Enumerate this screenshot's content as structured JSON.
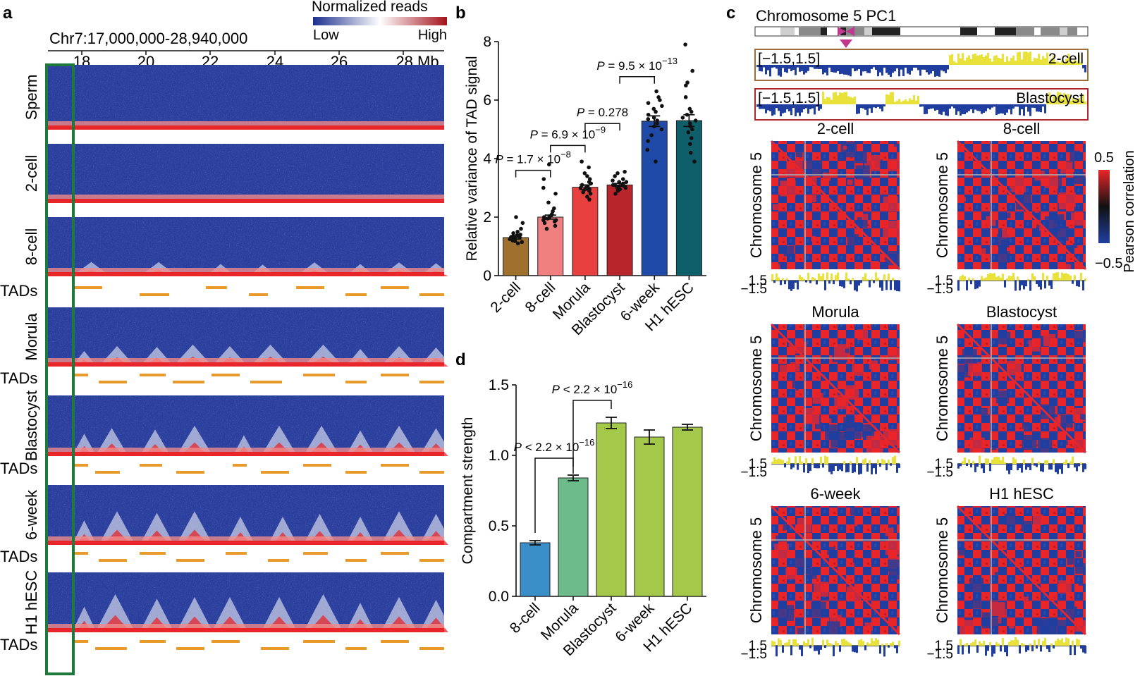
{
  "panels": {
    "a": {
      "letter": "a",
      "region": "Chr7:17,000,000-28,940,000",
      "xaxis": {
        "ticks": [
          "18",
          "20",
          "22",
          "24",
          "26",
          "28 Mb"
        ]
      },
      "legend": {
        "title": "Normalized reads",
        "low": "Low",
        "high": "High"
      },
      "tracks": [
        "Sperm",
        "2-cell",
        "8-cell",
        "Morula",
        "Blastocyst",
        "6-week",
        "H1 hESC"
      ],
      "tads_label": "TADs",
      "colors": {
        "low": "#2b3f9e",
        "mid": "#ffffff",
        "high": "#e8262a",
        "tad": "#e89a2a",
        "highlight": "#1e7a3c"
      }
    },
    "b": {
      "letter": "b",
      "chart_data": {
        "type": "bar",
        "ylabel": "Relative variance of TAD signal",
        "ylim": [
          0,
          8
        ],
        "yticks": [
          "0",
          "2",
          "4",
          "6",
          "8"
        ],
        "categories": [
          "2-cell",
          "8-cell",
          "Morula",
          "Blastocyst",
          "6-week",
          "H1 hESC"
        ],
        "values": [
          1.3,
          2.0,
          3.02,
          3.1,
          5.28,
          5.3
        ],
        "errors": [
          0.05,
          0.07,
          0.08,
          0.05,
          0.18,
          0.2
        ],
        "colors": [
          "#a0702f",
          "#f08080",
          "#e8403f",
          "#b8262c",
          "#1f4aa8",
          "#0f5f6a"
        ],
        "points": [
          [
            1.1,
            1.15,
            1.2,
            1.25,
            1.28,
            1.3,
            1.32,
            1.35,
            1.4,
            1.45,
            1.5,
            1.6,
            1.8,
            2.0,
            1.22,
            1.18,
            1.3,
            1.38
          ],
          [
            1.6,
            1.7,
            1.8,
            1.85,
            1.9,
            1.95,
            2.0,
            2.05,
            2.1,
            2.2,
            2.3,
            2.5,
            2.8,
            3.0,
            3.3,
            3.8,
            1.9,
            2.0
          ],
          [
            2.6,
            2.7,
            2.8,
            2.85,
            2.9,
            2.95,
            3.0,
            3.05,
            3.1,
            3.15,
            3.2,
            3.3,
            3.4,
            3.5,
            3.7,
            3.9,
            3.0,
            2.95
          ],
          [
            2.8,
            2.9,
            2.95,
            3.0,
            3.05,
            3.1,
            3.1,
            3.15,
            3.2,
            3.25,
            3.3,
            3.4,
            3.5,
            3.55,
            3.0,
            3.1,
            3.2,
            3.05
          ],
          [
            3.9,
            4.3,
            4.6,
            4.8,
            5.0,
            5.1,
            5.2,
            5.3,
            5.4,
            5.5,
            5.6,
            5.7,
            5.8,
            5.9,
            6.0,
            6.1,
            6.3,
            5.35
          ],
          [
            3.9,
            4.2,
            4.5,
            4.7,
            4.9,
            5.0,
            5.1,
            5.2,
            5.3,
            5.4,
            5.5,
            5.6,
            5.7,
            6.1,
            6.5,
            6.6,
            7.0,
            7.9
          ]
        ],
        "comparisons": [
          {
            "from": 0,
            "to": 1,
            "label": "P = 1.7 × 10",
            "exp": "−8",
            "y": 3.6
          },
          {
            "from": 1,
            "to": 2,
            "label": "P = 6.9 × 10",
            "exp": "−9",
            "y": 4.45
          },
          {
            "from": 2,
            "to": 3,
            "label": "P = 0.278",
            "exp": "",
            "y": 5.2
          },
          {
            "from": 3,
            "to": 4,
            "label": "P = 9.5 × 10",
            "exp": "−13",
            "y": 6.8
          }
        ]
      }
    },
    "c": {
      "letter": "c",
      "title": "Chromosome 5 PC1",
      "pc_tracks": [
        {
          "range": "[−1.5,1.5]",
          "label": "2-cell",
          "frame": "#9b6e3a"
        },
        {
          "range": "[−1.5,1.5]",
          "label": "Blastocyst",
          "frame": "#b0262c"
        }
      ],
      "matrices": [
        "2-cell",
        "8-cell",
        "Morula",
        "Blastocyst",
        "6-week",
        "H1 hESC"
      ],
      "ylabel": "Chromosome 5",
      "pc_ticks": [
        "1.5",
        "−1.5"
      ],
      "colorbar": {
        "max": "0.5",
        "min": "−0.5",
        "label": "Pearson correlation"
      },
      "colors": {
        "pos": "#e8262a",
        "neg": "#1f3ea0",
        "track_pos": "#e8e23a",
        "track_neg": "#1f3ea0",
        "centromere": "#c0398f"
      }
    },
    "d": {
      "letter": "d",
      "chart_data": {
        "type": "bar",
        "ylabel": "Compartment strength",
        "ylim": [
          0,
          1.5
        ],
        "yticks": [
          "0.0",
          "0.5",
          "1.0",
          "1.5"
        ],
        "categories": [
          "8-cell",
          "Morula",
          "Blastocyst",
          "6-week",
          "H1 hESC"
        ],
        "values": [
          0.38,
          0.84,
          1.23,
          1.13,
          1.2
        ],
        "errors": [
          0.015,
          0.02,
          0.04,
          0.05,
          0.02
        ],
        "colors": [
          "#3b8fc8",
          "#6dba8a",
          "#a4c84a",
          "#a4c84a",
          "#a4c84a"
        ],
        "comparisons": [
          {
            "from": 0,
            "to": 1,
            "label": "P < 2.2 × 10",
            "exp": "−16",
            "y": 0.98,
            "leftTop": 0.45
          },
          {
            "from": 1,
            "to": 2,
            "label": "P < 2.2 × 10",
            "exp": "−16",
            "y": 1.39,
            "leftTop": 0.87
          }
        ]
      }
    }
  }
}
